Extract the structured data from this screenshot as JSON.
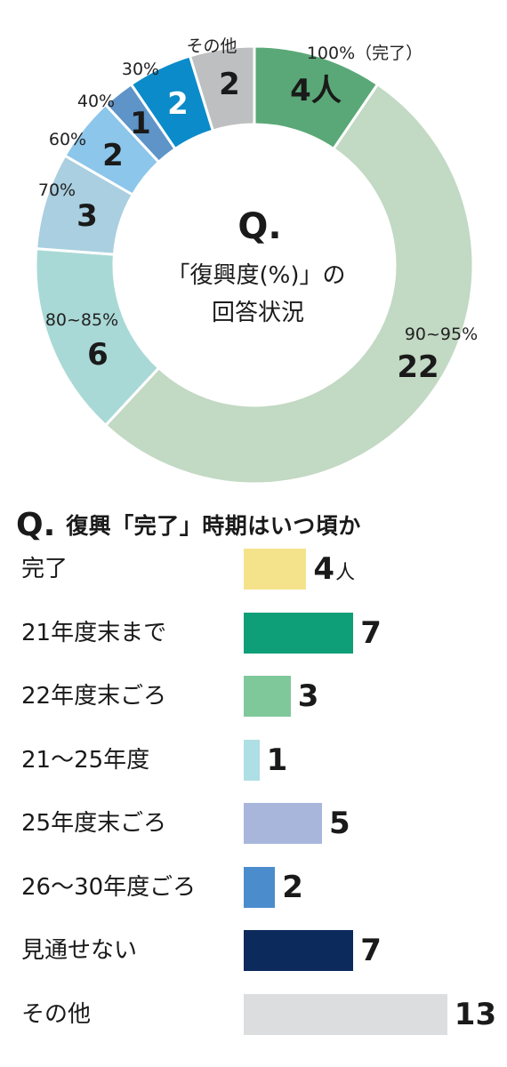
{
  "chart_data": [
    {
      "type": "pie",
      "title": "Q.「復興度(%)」の回答状況",
      "center": {
        "q": "Q.",
        "line1": "「復興度(%)」の",
        "line2": "回答状況"
      },
      "slices": [
        {
          "label": "100%（完了）",
          "value": 4,
          "value_text": "4人",
          "color": "#5aa877"
        },
        {
          "label": "90~95%",
          "value": 22,
          "value_text": "22",
          "color": "#c2d9c3"
        },
        {
          "label": "80~85%",
          "value": 6,
          "value_text": "6",
          "color": "#a9d9d6"
        },
        {
          "label": "70%",
          "value": 3,
          "value_text": "3",
          "color": "#a9cfe0"
        },
        {
          "label": "60%",
          "value": 2,
          "value_text": "2",
          "color": "#8cc6ea"
        },
        {
          "label": "40%",
          "value": 1,
          "value_text": "1",
          "color": "#5e94c8"
        },
        {
          "label": "30%",
          "value": 2,
          "value_text": "2",
          "color": "#0b8bc9"
        },
        {
          "label": "その他",
          "value": 2,
          "value_text": "2",
          "color": "#bdbfc1"
        }
      ]
    },
    {
      "type": "bar",
      "title": "Q. 復興「完了」時期はいつ頃か",
      "q": "Q.",
      "title_text": "復興「完了」時期はいつ頃か",
      "categories": [
        "完了",
        "21年度末まで",
        "22年度末ごろ",
        "21〜25年度",
        "25年度末ごろ",
        "26〜30年度ごろ",
        "見通せない",
        "その他"
      ],
      "values": [
        4,
        7,
        3,
        1,
        5,
        2,
        7,
        13
      ],
      "value_units": [
        "人",
        "",
        "",
        "",
        "",
        "",
        "",
        ""
      ],
      "colors": [
        "#f5e38c",
        "#0e9f79",
        "#7fc89a",
        "#aedfe5",
        "#a9b6dc",
        "#4b8ccd",
        "#0c2a5c",
        "#dcdddf"
      ]
    }
  ]
}
